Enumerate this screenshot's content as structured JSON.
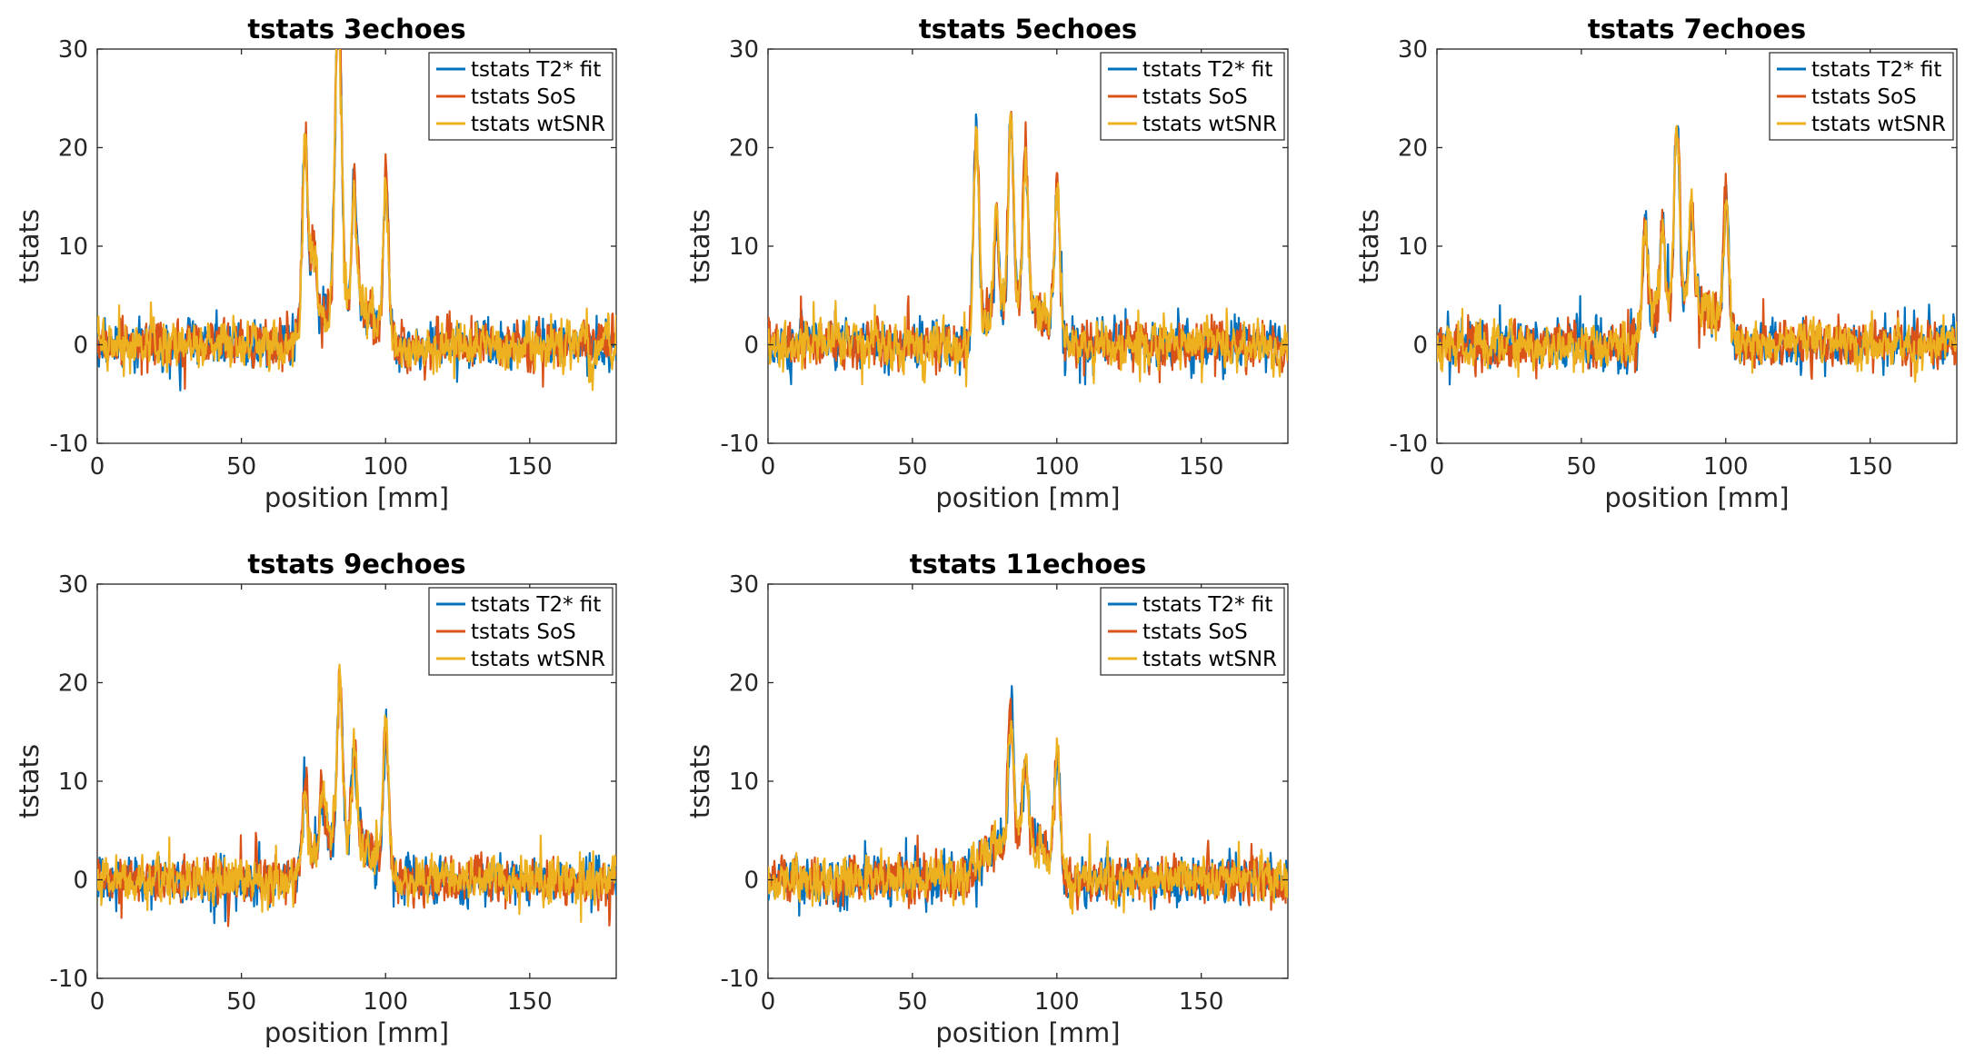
{
  "figure": {
    "background": "#ffffff"
  },
  "colors": {
    "series": [
      "#0072BD",
      "#D95319",
      "#EDB120"
    ]
  },
  "chart_data": [
    {
      "type": "line",
      "title": "tstats 3echoes",
      "xlabel": "position [mm]",
      "ylabel": "tstats",
      "xlim": [
        0,
        180
      ],
      "ylim": [
        -10,
        30
      ],
      "xticks": [
        "0",
        "50",
        "100",
        "150"
      ],
      "yticks": [
        "-10",
        "0",
        "10",
        "20",
        "30"
      ],
      "legend_position": "top-right",
      "peaks": [
        [
          72,
          20
        ],
        [
          75,
          8
        ],
        [
          83,
          18
        ],
        [
          84,
          19.5
        ],
        [
          89,
          12
        ],
        [
          100,
          15.5
        ]
      ],
      "series": [
        {
          "name": "tstats T2* fit",
          "noise_seed": 11
        },
        {
          "name": "tstats SoS",
          "noise_seed": 12
        },
        {
          "name": "tstats wtSNR",
          "noise_seed": 13
        }
      ]
    },
    {
      "type": "line",
      "title": "tstats 5echoes",
      "xlabel": "position [mm]",
      "ylabel": "tstats",
      "xlim": [
        0,
        180
      ],
      "ylim": [
        -10,
        30
      ],
      "xticks": [
        "0",
        "50",
        "100",
        "150"
      ],
      "yticks": [
        "-10",
        "0",
        "10",
        "20",
        "30"
      ],
      "legend_position": "top-right",
      "peaks": [
        [
          72,
          21.5
        ],
        [
          79,
          9
        ],
        [
          84,
          20
        ],
        [
          89,
          16
        ],
        [
          100,
          15
        ]
      ],
      "series": [
        {
          "name": "tstats T2* fit",
          "noise_seed": 21
        },
        {
          "name": "tstats SoS",
          "noise_seed": 22
        },
        {
          "name": "tstats wtSNR",
          "noise_seed": 23
        }
      ]
    },
    {
      "type": "line",
      "title": "tstats 7echoes",
      "xlabel": "position [mm]",
      "ylabel": "tstats",
      "xlim": [
        0,
        180
      ],
      "ylim": [
        -10,
        30
      ],
      "xticks": [
        "0",
        "50",
        "100",
        "150"
      ],
      "yticks": [
        "-10",
        "0",
        "10",
        "20",
        "30"
      ],
      "legend_position": "top-right",
      "peaks": [
        [
          72,
          11
        ],
        [
          78,
          9
        ],
        [
          83,
          19.5
        ],
        [
          88,
          10
        ],
        [
          100,
          14
        ]
      ],
      "series": [
        {
          "name": "tstats T2* fit",
          "noise_seed": 31
        },
        {
          "name": "tstats SoS",
          "noise_seed": 32
        },
        {
          "name": "tstats wtSNR",
          "noise_seed": 33
        }
      ]
    },
    {
      "type": "line",
      "title": "tstats 9echoes",
      "xlabel": "position [mm]",
      "ylabel": "tstats",
      "xlim": [
        0,
        180
      ],
      "ylim": [
        -10,
        30
      ],
      "xticks": [
        "0",
        "50",
        "100",
        "150"
      ],
      "yticks": [
        "-10",
        "0",
        "10",
        "20",
        "30"
      ],
      "legend_position": "top-right",
      "peaks": [
        [
          72,
          8
        ],
        [
          78,
          6
        ],
        [
          84,
          16.5
        ],
        [
          89,
          10
        ],
        [
          100,
          14.5
        ]
      ],
      "series": [
        {
          "name": "tstats T2* fit",
          "noise_seed": 41
        },
        {
          "name": "tstats SoS",
          "noise_seed": 42
        },
        {
          "name": "tstats wtSNR",
          "noise_seed": 43
        }
      ]
    },
    {
      "type": "line",
      "title": "tstats 11echoes",
      "xlabel": "position [mm]",
      "ylabel": "tstats",
      "xlim": [
        0,
        180
      ],
      "ylim": [
        -10,
        30
      ],
      "xticks": [
        "0",
        "50",
        "100",
        "150"
      ],
      "yticks": [
        "-10",
        "0",
        "10",
        "20",
        "30"
      ],
      "legend_position": "top-right",
      "peaks": [
        [
          84,
          13.5
        ],
        [
          89,
          8
        ],
        [
          100,
          11.5
        ]
      ],
      "series": [
        {
          "name": "tstats T2* fit",
          "noise_seed": 51
        },
        {
          "name": "tstats SoS",
          "noise_seed": 52
        },
        {
          "name": "tstats wtSNR",
          "noise_seed": 53
        }
      ]
    }
  ]
}
